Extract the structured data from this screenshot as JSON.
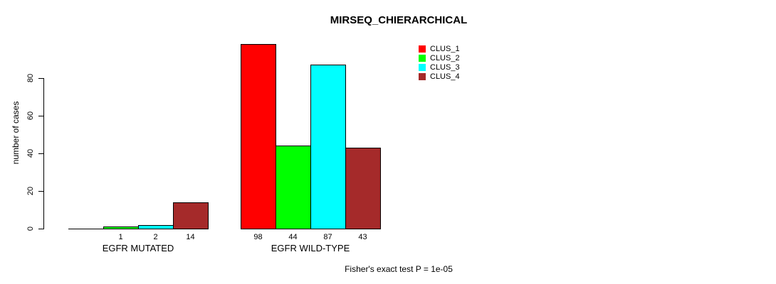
{
  "footer": "Fisher's exact test P = 1e-05",
  "background_color": "#FFFFFF",
  "chart_data": {
    "type": "bar",
    "title": "MIRSEQ_CHIERARCHICAL",
    "xlabel": "",
    "ylabel": "number of cases",
    "ylim": [
      0,
      100
    ],
    "yticks": [
      0,
      20,
      40,
      60,
      80
    ],
    "grid": false,
    "legend_position": "top-right",
    "categories": [
      "EGFR MUTATED",
      "EGFR WILD-TYPE"
    ],
    "series": [
      {
        "name": "CLUS_1",
        "color": "#FF0000",
        "values": [
          0,
          98
        ]
      },
      {
        "name": "CLUS_2",
        "color": "#00FF00",
        "values": [
          1,
          44
        ]
      },
      {
        "name": "CLUS_3",
        "color": "#00FFFF",
        "values": [
          2,
          87
        ]
      },
      {
        "name": "CLUS_4",
        "color": "#A52A2A",
        "values": [
          14,
          43
        ]
      }
    ],
    "value_labels": [
      [
        "",
        "1",
        "2",
        "14"
      ],
      [
        "98",
        "44",
        "87",
        "43"
      ]
    ],
    "annotation": "Fisher's exact test P = 1e-05"
  }
}
